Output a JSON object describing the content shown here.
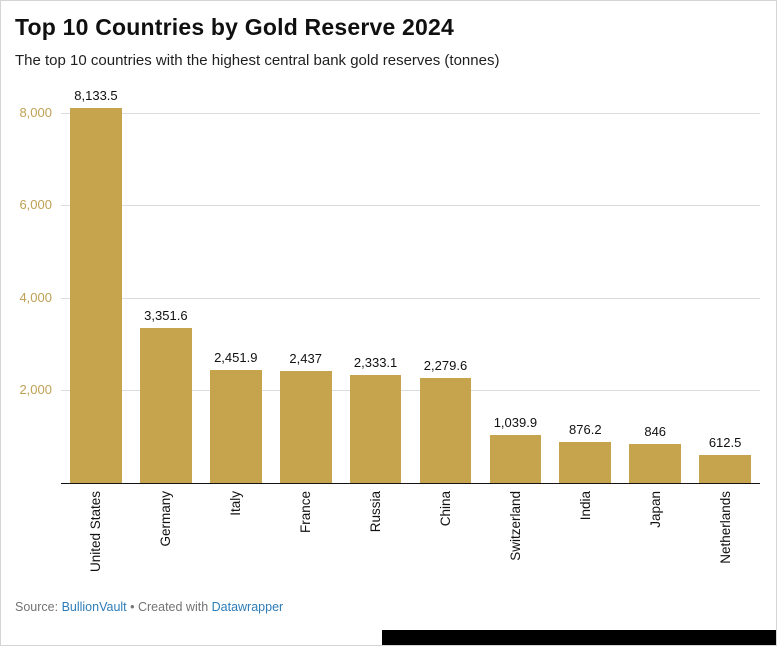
{
  "header": {
    "title": "Top 10 Countries by Gold Reserve 2024",
    "subtitle": "The top 10 countries with the highest central bank gold reserves (tonnes)"
  },
  "chart_data": {
    "type": "bar",
    "title": "Top 10 Countries by Gold Reserve 2024",
    "subtitle": "The top 10 countries with the highest central bank gold reserves (tonnes)",
    "categories": [
      "United States",
      "Germany",
      "Italy",
      "France",
      "Russia",
      "China",
      "Switzerland",
      "India",
      "Japan",
      "Netherlands"
    ],
    "values": [
      8133.5,
      3351.6,
      2451.9,
      2437,
      2333.1,
      2279.6,
      1039.9,
      876.2,
      846,
      612.5
    ],
    "value_labels": [
      "8,133.5",
      "3,351.6",
      "2,451.9",
      "2,437",
      "2,333.1",
      "2,279.6",
      "1,039.9",
      "876.2",
      "846",
      "612.5"
    ],
    "xlabel": "",
    "ylabel": "",
    "unit": "tonnes",
    "ylim": [
      0,
      8250
    ],
    "yticks": [
      2000,
      4000,
      6000,
      8000
    ],
    "ytick_labels": [
      "2,000",
      "4,000",
      "6,000",
      "8,000"
    ],
    "grid": true,
    "legend": "none",
    "bar_color": "#c6a44e",
    "ytick_color": "#bfa054"
  },
  "footer": {
    "source_prefix": "Source: ",
    "source_link": "BullionVault",
    "separator": " • Created with ",
    "credit_link": "Datawrapper",
    "link_color": "#2e7cb8"
  }
}
